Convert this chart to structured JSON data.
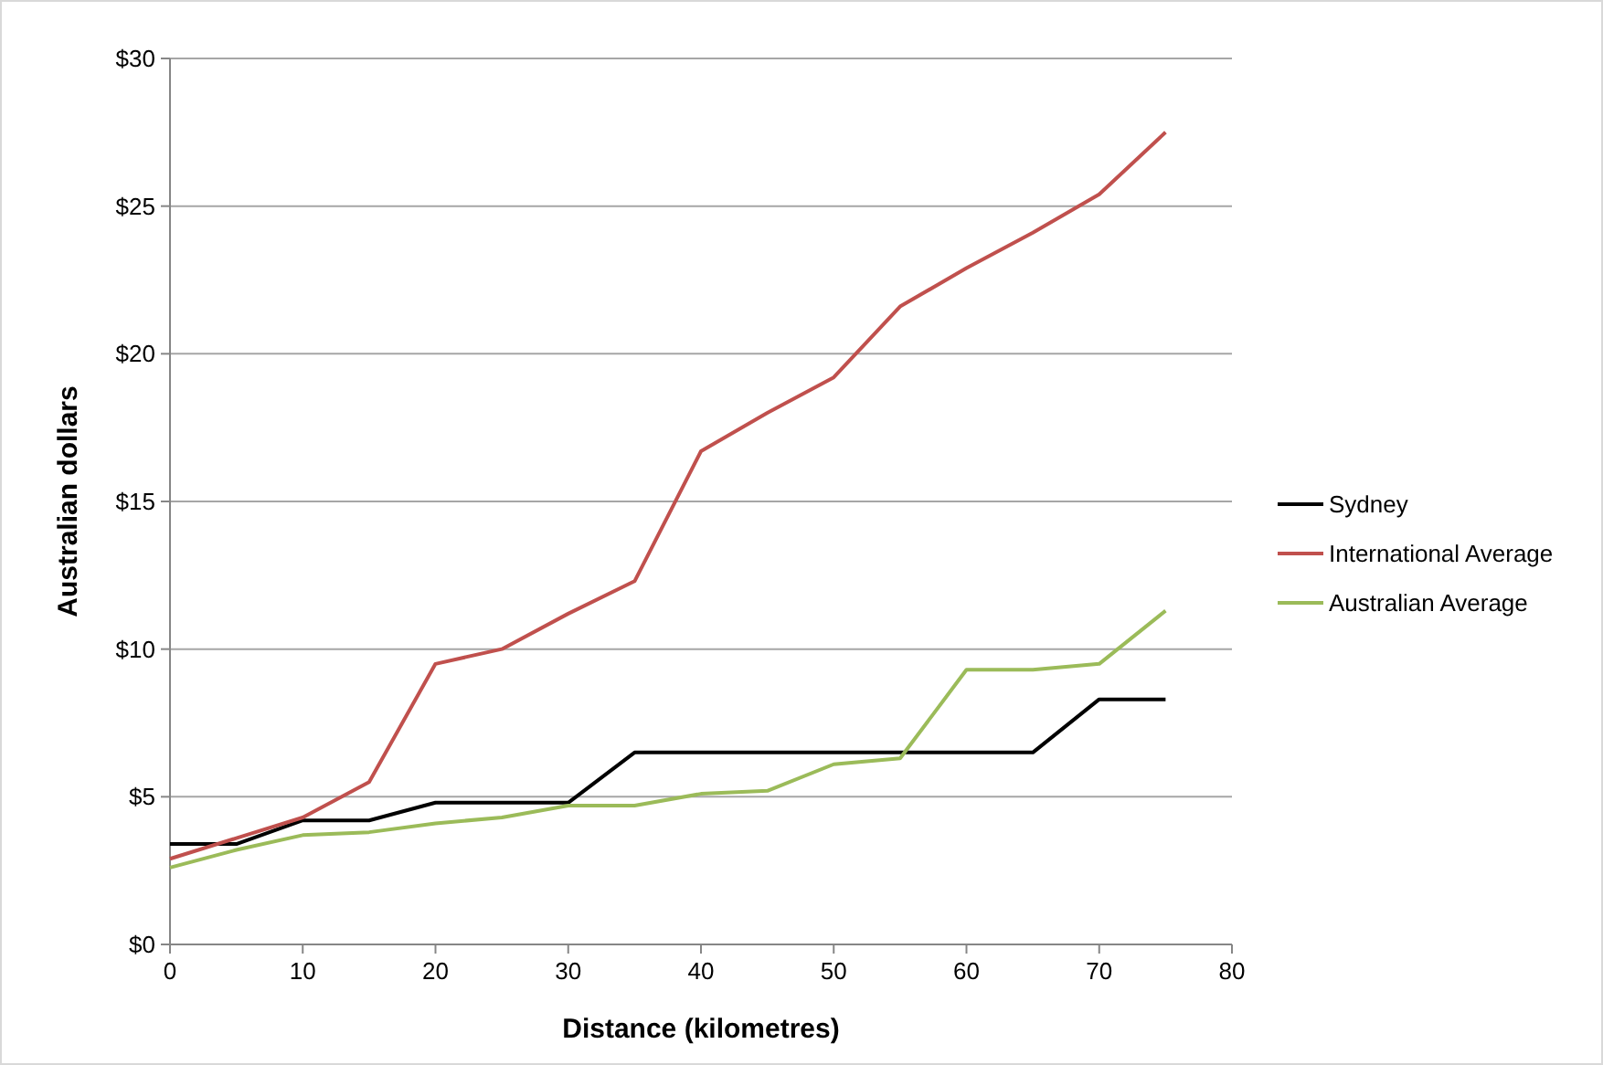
{
  "chart_data": {
    "type": "line",
    "xlabel": "Distance (kilometres)",
    "ylabel": "Australian dollars",
    "x": [
      0,
      5,
      10,
      15,
      20,
      25,
      30,
      35,
      40,
      45,
      50,
      55,
      60,
      65,
      70,
      75
    ],
    "series": [
      {
        "name": "Sydney",
        "color": "#000000",
        "values": [
          3.4,
          3.4,
          4.2,
          4.2,
          4.8,
          4.8,
          4.8,
          6.5,
          6.5,
          6.5,
          6.5,
          6.5,
          6.5,
          6.5,
          8.3,
          8.3
        ]
      },
      {
        "name": "International Average",
        "color": "#c0504d",
        "values": [
          2.9,
          3.6,
          4.3,
          5.5,
          9.5,
          10.0,
          11.2,
          12.3,
          16.7,
          18.0,
          19.2,
          21.6,
          22.9,
          24.1,
          25.4,
          27.5
        ]
      },
      {
        "name": "Australian Average",
        "color": "#9bbb59",
        "values": [
          2.6,
          3.2,
          3.7,
          3.8,
          4.1,
          4.3,
          4.7,
          4.7,
          5.1,
          5.2,
          6.1,
          6.3,
          9.3,
          9.3,
          9.5,
          11.3
        ]
      }
    ],
    "xlim": [
      0,
      80
    ],
    "xticks": [
      0,
      10,
      20,
      30,
      40,
      50,
      60,
      70,
      80
    ],
    "ylim": [
      0,
      30
    ],
    "yticks": [
      {
        "value": 0,
        "label": "$0"
      },
      {
        "value": 5,
        "label": "$5"
      },
      {
        "value": 10,
        "label": "$10"
      },
      {
        "value": 15,
        "label": "$15"
      },
      {
        "value": 20,
        "label": "$20"
      },
      {
        "value": 25,
        "label": "$25"
      },
      {
        "value": 30,
        "label": "$30"
      }
    ],
    "grid": "y",
    "legend": "right",
    "marker": "none",
    "line_style": "solid"
  }
}
